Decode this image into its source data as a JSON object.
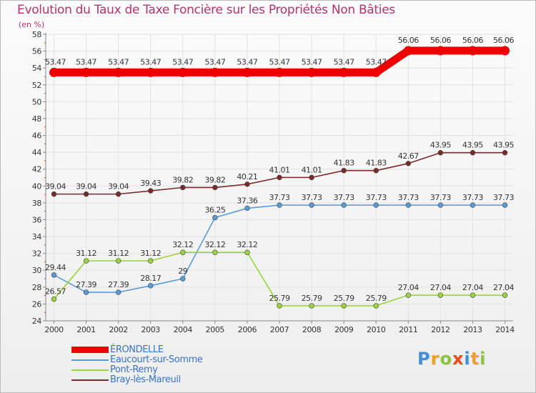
{
  "chart_data": {
    "type": "line",
    "title": "Evolution du Taux de Taxe Foncière sur les Propriétés Non Bâties",
    "subtitle": "(en %)",
    "xlabel": "",
    "ylabel": "",
    "ylim": [
      24,
      58
    ],
    "ytick_step": 2,
    "grid": true,
    "categories": [
      "2000",
      "2001",
      "2002",
      "2003",
      "2004",
      "2005",
      "2006",
      "2007",
      "2008",
      "2009",
      "2010",
      "2011",
      "2012",
      "2013",
      "2014"
    ],
    "series": [
      {
        "name": "ÉRONDELLE",
        "color": "#ee0000",
        "values": [
          53.47,
          53.47,
          53.47,
          53.47,
          53.47,
          53.47,
          53.47,
          53.47,
          53.47,
          53.47,
          53.47,
          56.06,
          56.06,
          56.06,
          56.06
        ],
        "labels": [
          "53.47",
          "53.47",
          "53.47",
          "53.47",
          "53.47",
          "53.47",
          "53.47",
          "53.47",
          "53.47",
          "53.47",
          "53.47",
          "56.06",
          "56.06",
          "56.06",
          "56.06"
        ]
      },
      {
        "name": "Eaucourt-sur-Somme",
        "color": "#5b9bd5",
        "values": [
          29.44,
          27.39,
          27.39,
          28.17,
          29,
          36.25,
          37.36,
          37.73,
          37.73,
          37.73,
          37.73,
          37.73,
          37.73,
          37.73,
          37.73
        ],
        "labels": [
          "29.44",
          "27.39",
          "27.39",
          "28.17",
          "29",
          "36.25",
          "37.36",
          "37.73",
          "37.73",
          "37.73",
          "37.73",
          "37.73",
          "37.73",
          "37.73",
          "37.73"
        ]
      },
      {
        "name": "Pont-Remy",
        "color": "#9ad43c",
        "values": [
          26.57,
          31.12,
          31.12,
          31.12,
          32.12,
          32.12,
          32.12,
          25.79,
          25.79,
          25.79,
          25.79,
          27.04,
          27.04,
          27.04,
          27.04
        ],
        "labels": [
          "26.57",
          "31.12",
          "31.12",
          "31.12",
          "32.12",
          "32.12",
          "32.12",
          "25.79",
          "25.79",
          "25.79",
          "25.79",
          "27.04",
          "27.04",
          "27.04",
          "27.04"
        ]
      },
      {
        "name": "Bray-lès-Mareuil",
        "color": "#7b2a2a",
        "values": [
          39.04,
          39.04,
          39.04,
          39.43,
          39.82,
          39.82,
          40.21,
          41.01,
          41.01,
          41.83,
          41.83,
          42.67,
          43.95,
          43.95,
          43.95
        ],
        "labels": [
          "39.04",
          "39.04",
          "39.04",
          "39.43",
          "39.82",
          "39.82",
          "40.21",
          "41.01",
          "41.01",
          "41.83",
          "41.83",
          "42.67",
          "43.95",
          "43.95",
          "43.95"
        ]
      }
    ]
  },
  "logo": {
    "letters": [
      "P",
      "r",
      "o",
      "x",
      "i",
      "t",
      "i"
    ],
    "colors": [
      "#3f8fd6",
      "#f0a020",
      "#8cc63f",
      "#e94e1b",
      "#3f8fd6",
      "#f0a020",
      "#8cc63f"
    ]
  }
}
